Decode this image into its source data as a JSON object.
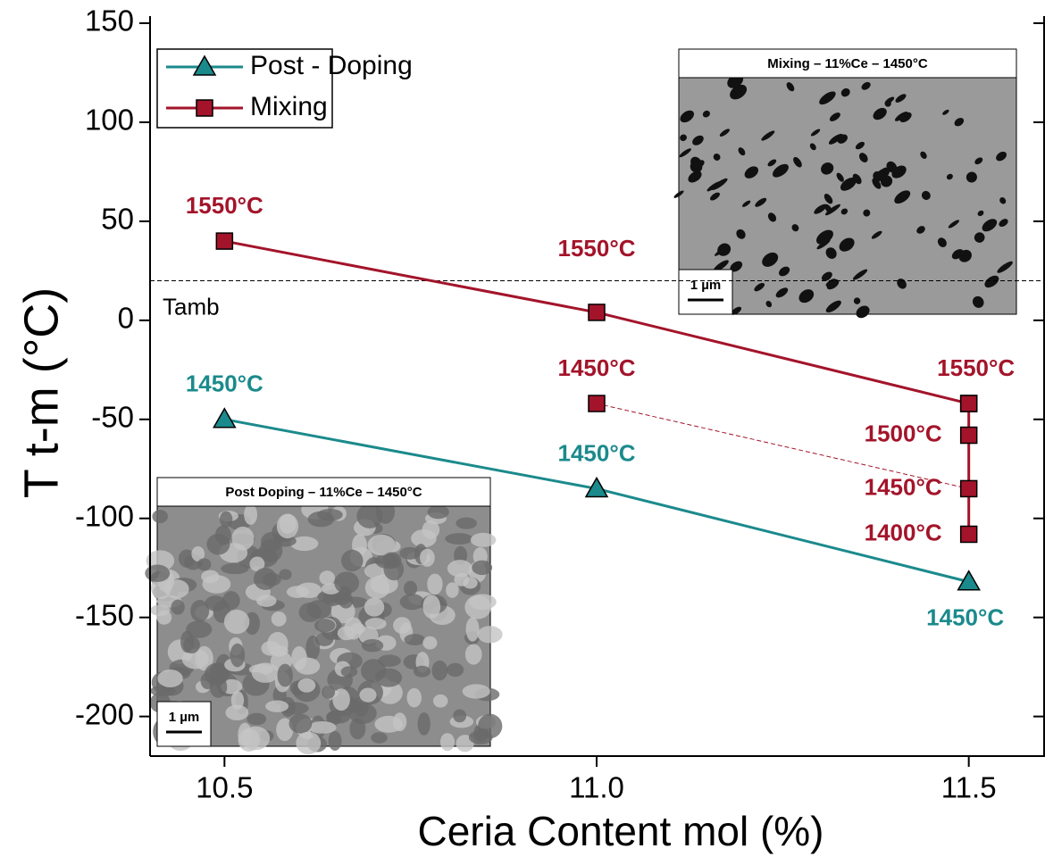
{
  "chart_data": {
    "type": "line",
    "x_label": "Ceria Content mol (%)",
    "y_label": "T t-m (°C)",
    "xlim": [
      10.4,
      11.6
    ],
    "xticks": [
      10.5,
      {
        "value": 11,
        "label": "11.0"
      },
      11.5
    ],
    "ylim": [
      -220,
      150
    ],
    "yticks": [
      -200,
      -150,
      -100,
      -50,
      0,
      50,
      100,
      150
    ],
    "legend": "upper left",
    "reference_line": {
      "value": 20,
      "label": "Tamb"
    },
    "series": [
      {
        "name": "Post - Doping",
        "color": "#1b8a8c",
        "marker": "triangle",
        "dash": false,
        "x": [
          10.5,
          11,
          11.5
        ],
        "values": [
          -50,
          -85,
          -132
        ],
        "point_labels": [
          "1450°C",
          "1450°C",
          "1450°C"
        ],
        "label_positions": [
          "above",
          "above",
          "below"
        ]
      },
      {
        "name": "Mixing",
        "color": "#a3142a",
        "marker": "square",
        "dash": false,
        "x": [
          10.5,
          11,
          11.5
        ],
        "values": [
          40,
          4,
          -42
        ],
        "point_labels": [
          "1550°C",
          "1550°C",
          "1550°C"
        ],
        "label_positions": [
          "above",
          "above",
          "above"
        ]
      },
      {
        "color": "#a3142a",
        "marker": "square",
        "dash": true,
        "x": [
          11,
          11.5
        ],
        "values": [
          -42,
          -85
        ],
        "point_labels": [
          "1450°C",
          null
        ],
        "label_positions": [
          "above",
          "left"
        ]
      },
      {
        "color": "#a3142a",
        "marker": "square",
        "dash": false,
        "x": [
          11.5,
          11.5,
          11.5,
          11.5
        ],
        "values": [
          -42,
          -58,
          -85,
          -108
        ],
        "point_labels": [
          null,
          "1500°C",
          "1450°C",
          "1400°C"
        ],
        "label_positions": [
          "left",
          "left",
          "left",
          "left"
        ]
      }
    ],
    "insets": [
      {
        "title": "Mixing – 11%Ce – 1450°C",
        "scale": "1 µm"
      },
      {
        "title": "Post Doping – 11%Ce – 1450°C",
        "scale": "1 µm"
      }
    ]
  }
}
